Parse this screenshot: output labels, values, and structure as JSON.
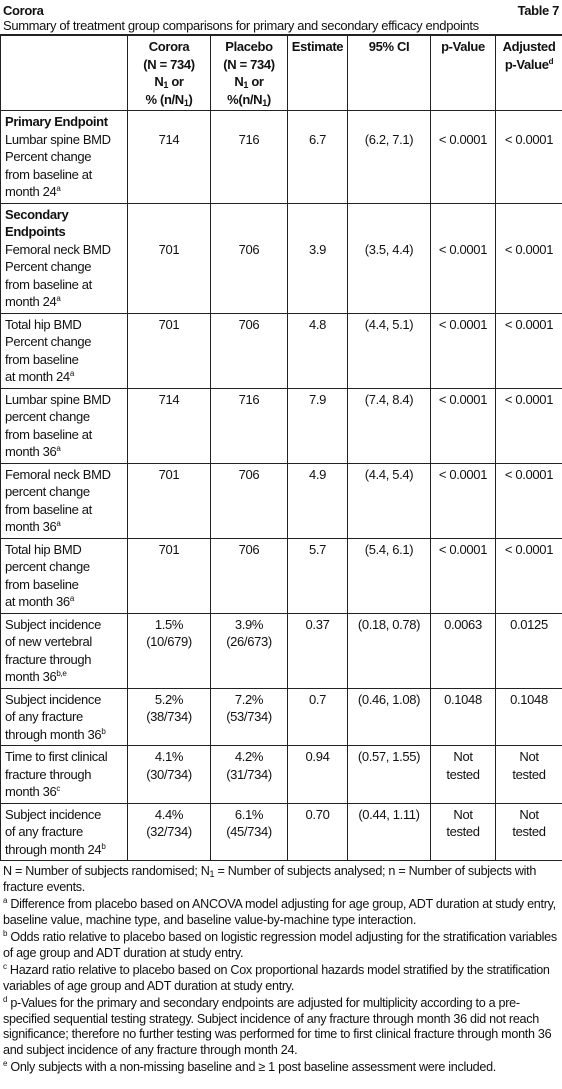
{
  "header": {
    "title": "Corora",
    "table_label": "Table 7",
    "subtitle": "Summary of treatment group comparisons for primary and secondary efficacy endpoints"
  },
  "table": {
    "columns": [
      [],
      [
        "Corora",
        "(N = 734)",
        [
          "N",
          {
            "sub": "1"
          },
          " or"
        ],
        [
          "% (n/N",
          {
            "sub": "1"
          },
          ")"
        ]
      ],
      [
        "Placebo",
        "(N = 734)",
        [
          "N",
          {
            "sub": "1"
          },
          " or"
        ],
        [
          "%(n/N",
          {
            "sub": "1"
          },
          ")"
        ]
      ],
      [
        "Estimate"
      ],
      [
        "95% CI"
      ],
      [
        "p-Value"
      ],
      [
        "Adjusted",
        [
          "p-Value",
          {
            "sup": "d"
          }
        ]
      ]
    ],
    "rows": [
      {
        "section": "Primary Endpoint"
      },
      {
        "cells": [
          [
            "Lumbar spine BMD",
            "Percent change",
            "from baseline at",
            [
              "month 24",
              {
                "sup": "a"
              }
            ]
          ],
          [
            "714"
          ],
          [
            "716"
          ],
          [
            "6.7"
          ],
          [
            "(6.2, 7.1)"
          ],
          [
            "< 0.0001"
          ],
          [
            "< 0.0001"
          ]
        ]
      },
      {
        "section": "Secondary Endpoints"
      },
      {
        "cells": [
          [
            "Femoral neck BMD",
            "Percent change",
            "from baseline at",
            [
              "month 24",
              {
                "sup": "a"
              }
            ]
          ],
          [
            "701"
          ],
          [
            "706"
          ],
          [
            "3.9"
          ],
          [
            "(3.5, 4.4)"
          ],
          [
            "< 0.0001"
          ],
          [
            "< 0.0001"
          ]
        ]
      },
      {
        "cells": [
          [
            "Total hip BMD",
            "Percent change",
            "from baseline",
            [
              "at month 24",
              {
                "sup": "a"
              }
            ]
          ],
          [
            "701"
          ],
          [
            "706"
          ],
          [
            "4.8"
          ],
          [
            "(4.4, 5.1)"
          ],
          [
            "< 0.0001"
          ],
          [
            "< 0.0001"
          ]
        ]
      },
      {
        "cells": [
          [
            "Lumbar spine BMD",
            "percent change",
            "from baseline at",
            [
              "month 36",
              {
                "sup": "a"
              }
            ]
          ],
          [
            "714"
          ],
          [
            "716"
          ],
          [
            "7.9"
          ],
          [
            "(7.4, 8.4)"
          ],
          [
            "< 0.0001"
          ],
          [
            "< 0.0001"
          ]
        ]
      },
      {
        "cells": [
          [
            "Femoral neck BMD",
            "percent change",
            "from baseline at",
            [
              "month 36",
              {
                "sup": "a"
              }
            ]
          ],
          [
            "701"
          ],
          [
            "706"
          ],
          [
            "4.9"
          ],
          [
            "(4.4, 5.4)"
          ],
          [
            "< 0.0001"
          ],
          [
            "< 0.0001"
          ]
        ]
      },
      {
        "cells": [
          [
            "Total hip BMD",
            "percent change",
            "from baseline",
            [
              "at month 36",
              {
                "sup": "a"
              }
            ]
          ],
          [
            "701"
          ],
          [
            "706"
          ],
          [
            "5.7"
          ],
          [
            "(5.4, 6.1)"
          ],
          [
            "< 0.0001"
          ],
          [
            "< 0.0001"
          ]
        ]
      },
      {
        "cells": [
          [
            "Subject incidence",
            "of new vertebral",
            "fracture through",
            [
              "month 36",
              {
                "sup": "b,e"
              }
            ]
          ],
          [
            "1.5%",
            "(10/679)"
          ],
          [
            "3.9%",
            "(26/673)"
          ],
          [
            "0.37"
          ],
          [
            "(0.18, 0.78)"
          ],
          [
            "0.0063"
          ],
          [
            "0.0125"
          ]
        ]
      },
      {
        "cells": [
          [
            "Subject incidence",
            "of any fracture",
            [
              "through month 36",
              {
                "sup": "b"
              }
            ]
          ],
          [
            "5.2%",
            "(38/734)"
          ],
          [
            "7.2%",
            "(53/734)"
          ],
          [
            "0.7"
          ],
          [
            "(0.46, 1.08)"
          ],
          [
            "0.1048"
          ],
          [
            "0.1048"
          ]
        ]
      },
      {
        "cells": [
          [
            "Time to first clinical",
            "fracture through",
            [
              "month 36",
              {
                "sup": "c"
              }
            ]
          ],
          [
            "4.1%",
            "(30/734)"
          ],
          [
            "4.2%",
            "(31/734)"
          ],
          [
            "0.94"
          ],
          [
            "(0.57, 1.55)"
          ],
          [
            "Not",
            "tested"
          ],
          [
            "Not",
            "tested"
          ]
        ]
      },
      {
        "cells": [
          [
            "Subject incidence",
            "of any fracture",
            [
              "through month 24",
              {
                "sup": "b"
              }
            ]
          ],
          [
            "4.4%",
            "(32/734)"
          ],
          [
            "6.1%",
            "(45/734)"
          ],
          [
            "0.70"
          ],
          [
            "(0.44, 1.11)"
          ],
          [
            "Not",
            "tested"
          ],
          [
            "Not",
            "tested"
          ]
        ]
      }
    ]
  },
  "footnotes": [
    [
      "N = Number of subjects randomised; N",
      {
        "sub": "1"
      },
      " = Number of subjects analysed; n = Number of subjects with fracture events."
    ],
    [
      {
        "sup": "a"
      },
      " Difference from placebo based on ANCOVA model adjusting for age group, ADT duration at study entry, baseline value, machine type, and baseline value-by-machine type interaction."
    ],
    [
      {
        "sup": "b"
      },
      " Odds ratio relative to placebo based on logistic regression model adjusting for the stratification variables of age group and ADT duration at study entry."
    ],
    [
      {
        "sup": "c"
      },
      " Hazard ratio relative to placebo based on Cox proportional hazards model stratified by the stratification variables of age group and ADT duration at study entry."
    ],
    [
      {
        "sup": "d"
      },
      " p-Values for the primary and secondary endpoints are adjusted for multiplicity according to a pre-specified sequential testing strategy. Subject incidence of any fracture through month 36 did not reach significance; therefore no further testing was performed for time to first clinical fracture through month 36 and subject incidence of any fracture through month 24."
    ],
    [
      {
        "sup": "e"
      },
      " Only subjects with a non-missing baseline and ≥ 1 post baseline assessment were included."
    ]
  ]
}
